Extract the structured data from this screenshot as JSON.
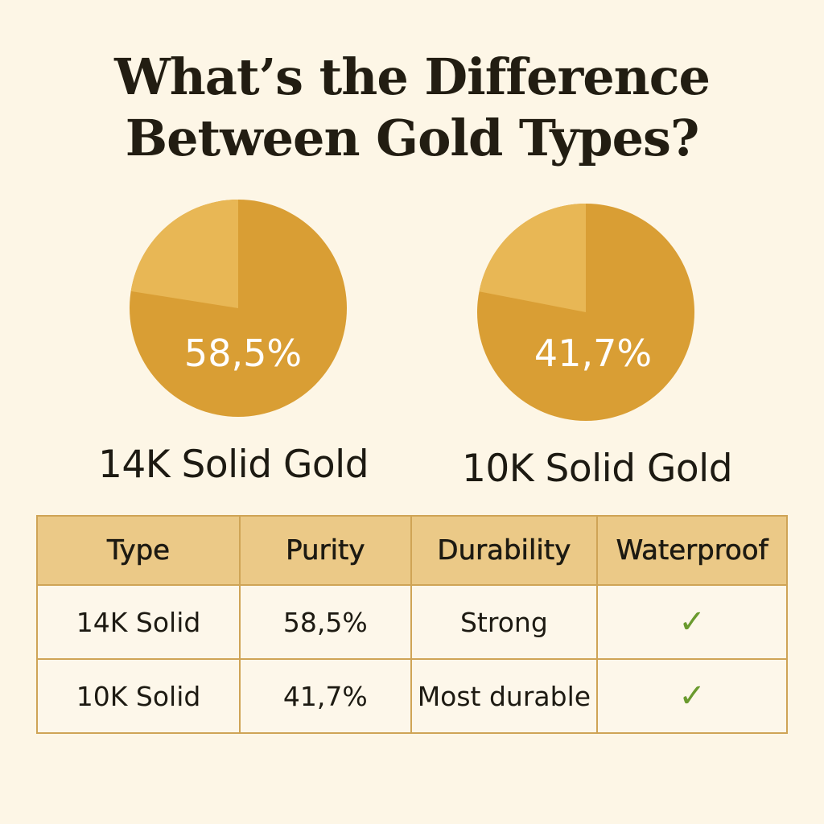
{
  "title_line1": "What’s the Difference",
  "title_line2": "Between Gold Types?",
  "colors": {
    "background": "#fdf6e6",
    "gold_dark": "#d99e34",
    "gold_light": "#e8b755",
    "header": "#ebc987",
    "check": "#6a9a2e"
  },
  "chart_data": [
    {
      "type": "pie",
      "label": "14K Solid Gold",
      "value_label": "58,5%",
      "values": [
        58.5
      ]
    },
    {
      "type": "pie",
      "label": "10K Solid Gold",
      "value_label": "41,7%",
      "values": [
        41.7
      ]
    }
  ],
  "table": {
    "headers": [
      "Type",
      "Purity",
      "Durability",
      "Waterproof"
    ],
    "rows": [
      {
        "type": "14K Solid",
        "purity": "58,5%",
        "durability": "Strong",
        "waterproof": "check-icon"
      },
      {
        "type": "10K Solid",
        "purity": "41,7%",
        "durability": "Most durable",
        "waterproof": "check-icon"
      }
    ]
  }
}
